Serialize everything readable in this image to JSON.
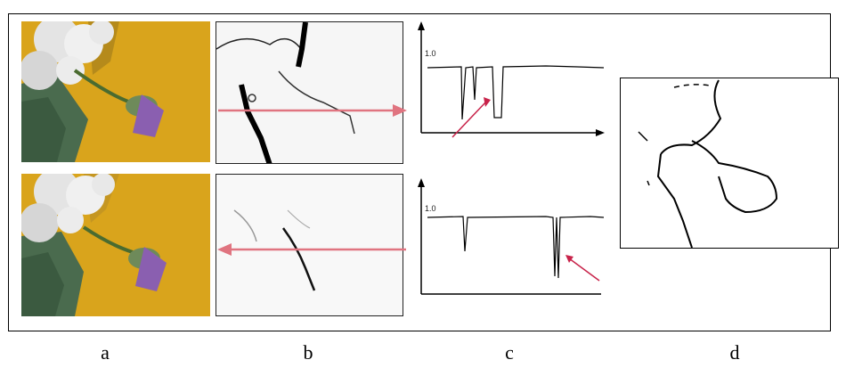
{
  "figure": {
    "panel_labels": [
      "a",
      "b",
      "c",
      "d"
    ],
    "plot_top": {
      "y_tick": "1.0"
    },
    "plot_bottom": {
      "y_tick": "1.0"
    },
    "colors": {
      "background": "#d9a41c",
      "arrow": "#e07480",
      "pointer": "#c8234a",
      "leaves": "#4a6b4e",
      "flower": "#8a5fb0"
    }
  }
}
